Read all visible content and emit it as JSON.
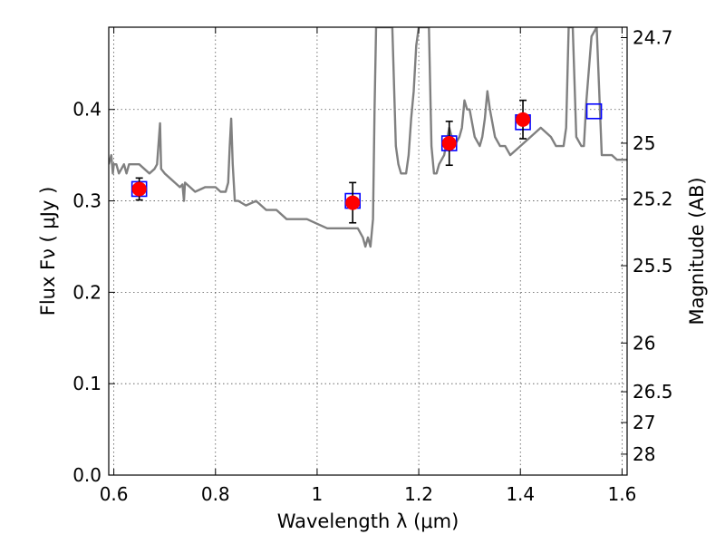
{
  "chart_data": {
    "type": "line",
    "xlabel": "Wavelength  λ (μm)",
    "ylabel": "Flux  Fν  ( μJy )",
    "ylabel_right": "Magnitude (AB)",
    "xlim": [
      0.59,
      1.61
    ],
    "ylim": [
      0.0,
      0.49
    ],
    "grid": true,
    "x_ticks": [
      0.6,
      0.8,
      1.0,
      1.2,
      1.4,
      1.6
    ],
    "x_tick_labels": [
      "0.6",
      "0.8",
      "1",
      "1.2",
      "1.4",
      "1.6"
    ],
    "y_ticks": [
      0.0,
      0.1,
      0.2,
      0.3,
      0.4
    ],
    "y_tick_labels": [
      "0.0",
      "0.1",
      "0.2",
      "0.3",
      "0.4"
    ],
    "mag_ticks": [
      {
        "label": "24.7",
        "flux": 0.4786
      },
      {
        "label": "25",
        "flux": 0.3631
      },
      {
        "label": "25.2",
        "flux": 0.302
      },
      {
        "label": "25.5",
        "flux": 0.2291
      },
      {
        "label": "26",
        "flux": 0.1445
      },
      {
        "label": "26.5",
        "flux": 0.0912
      },
      {
        "label": "27",
        "flux": 0.0575
      },
      {
        "label": "28",
        "flux": 0.0229
      }
    ],
    "colors": {
      "model": "#808080",
      "observed": "#ff0000",
      "synthetic": "#0000ff",
      "grid": "#555555"
    },
    "model_spectrum": {
      "x": [
        0.59,
        0.595,
        0.598,
        0.6,
        0.605,
        0.61,
        0.62,
        0.625,
        0.63,
        0.64,
        0.65,
        0.66,
        0.67,
        0.68,
        0.685,
        0.689,
        0.691,
        0.693,
        0.7,
        0.71,
        0.72,
        0.73,
        0.735,
        0.738,
        0.74,
        0.75,
        0.76,
        0.78,
        0.8,
        0.81,
        0.82,
        0.825,
        0.828,
        0.831,
        0.834,
        0.838,
        0.845,
        0.86,
        0.88,
        0.9,
        0.92,
        0.94,
        0.96,
        0.98,
        1.0,
        1.02,
        1.04,
        1.06,
        1.07,
        1.08,
        1.09,
        1.095,
        1.1,
        1.105,
        1.11,
        1.113,
        1.116,
        1.118,
        1.125,
        1.13,
        1.135,
        1.14,
        1.145,
        1.148,
        1.155,
        1.16,
        1.165,
        1.17,
        1.175,
        1.18,
        1.185,
        1.19,
        1.195,
        1.2,
        1.205,
        1.21,
        1.215,
        1.22,
        1.225,
        1.23,
        1.235,
        1.24,
        1.25,
        1.26,
        1.27,
        1.28,
        1.285,
        1.29,
        1.295,
        1.3,
        1.31,
        1.32,
        1.325,
        1.33,
        1.335,
        1.34,
        1.35,
        1.36,
        1.37,
        1.38,
        1.4,
        1.42,
        1.44,
        1.46,
        1.47,
        1.48,
        1.485,
        1.49,
        1.495,
        1.5,
        1.503,
        1.51,
        1.52,
        1.525,
        1.53,
        1.54,
        1.55,
        1.56,
        1.57,
        1.58,
        1.59,
        1.6,
        1.61
      ],
      "y": [
        0.34,
        0.35,
        0.33,
        0.34,
        0.34,
        0.33,
        0.34,
        0.33,
        0.34,
        0.34,
        0.34,
        0.335,
        0.33,
        0.335,
        0.34,
        0.37,
        0.385,
        0.335,
        0.33,
        0.325,
        0.32,
        0.315,
        0.318,
        0.3,
        0.32,
        0.315,
        0.31,
        0.315,
        0.315,
        0.31,
        0.31,
        0.32,
        0.36,
        0.39,
        0.34,
        0.3,
        0.3,
        0.295,
        0.3,
        0.29,
        0.29,
        0.28,
        0.28,
        0.28,
        0.275,
        0.27,
        0.27,
        0.27,
        0.27,
        0.27,
        0.26,
        0.25,
        0.26,
        0.25,
        0.28,
        0.4,
        0.49,
        0.49,
        0.49,
        0.49,
        0.49,
        0.49,
        0.49,
        0.49,
        0.36,
        0.34,
        0.33,
        0.33,
        0.33,
        0.35,
        0.39,
        0.42,
        0.47,
        0.49,
        0.49,
        0.49,
        0.49,
        0.49,
        0.36,
        0.33,
        0.33,
        0.34,
        0.35,
        0.38,
        0.36,
        0.37,
        0.38,
        0.41,
        0.4,
        0.4,
        0.37,
        0.36,
        0.37,
        0.39,
        0.42,
        0.4,
        0.37,
        0.36,
        0.36,
        0.35,
        0.36,
        0.37,
        0.38,
        0.37,
        0.36,
        0.36,
        0.36,
        0.38,
        0.49,
        0.49,
        0.49,
        0.37,
        0.36,
        0.36,
        0.41,
        0.48,
        0.49,
        0.35,
        0.35,
        0.35,
        0.345,
        0.345,
        0.345
      ]
    },
    "observed_points": [
      {
        "x": 0.65,
        "y": 0.313,
        "yerr": 0.012
      },
      {
        "x": 1.07,
        "y": 0.298,
        "yerr": 0.022
      },
      {
        "x": 1.26,
        "y": 0.363,
        "yerr": 0.024
      },
      {
        "x": 1.405,
        "y": 0.389,
        "yerr": 0.021
      }
    ],
    "synthetic_points": [
      {
        "x": 0.65,
        "y": 0.313
      },
      {
        "x": 1.07,
        "y": 0.3
      },
      {
        "x": 1.26,
        "y": 0.363
      },
      {
        "x": 1.405,
        "y": 0.386
      },
      {
        "x": 1.545,
        "y": 0.398
      }
    ]
  }
}
